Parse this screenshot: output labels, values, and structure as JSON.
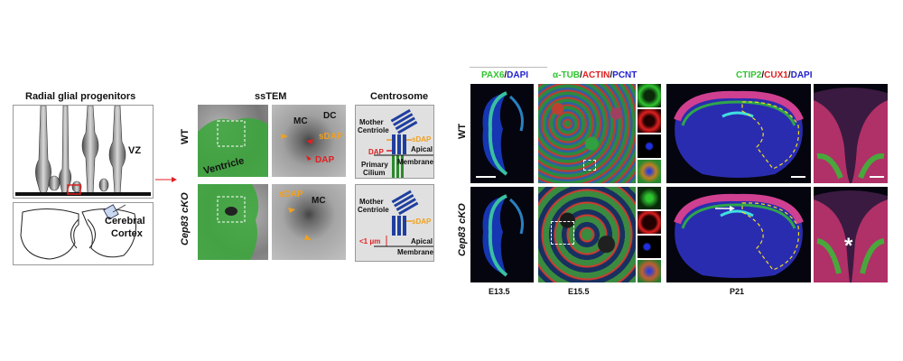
{
  "colors": {
    "green": "#2fc52f",
    "red": "#e02020",
    "blue": "#2020d0",
    "orange": "#f0a020",
    "gray": "#888888"
  },
  "schematic": {
    "title": "Radial glial progenitors",
    "vz": "VZ",
    "cortex_label_1": "Cerebral",
    "cortex_label_2": "Cortex"
  },
  "sstem": {
    "title": "ssTEM",
    "wt": "WT",
    "cko": "Cep83 cKO",
    "ventricle": "Ventricle",
    "mc": "MC",
    "dc": "DC",
    "sdap": "sDAP",
    "dap": "DAP",
    "mc_cko": "MC",
    "sdap_cko": "sDAP"
  },
  "centrosome": {
    "title": "Centrosome",
    "mother_1": "Mother",
    "mother_2": "Centriole",
    "sdap": "sDAP",
    "dap": "DAP",
    "apical_1": "Apical",
    "apical_2": "Membrane",
    "primary_1": "Primary",
    "primary_2": "Cilium",
    "cko_mother_1": "Mother",
    "cko_mother_2": "Centriole",
    "cko_sdap": "sDAP",
    "distance": "<1 μm",
    "cko_apical_1": "Apical",
    "cko_apical_2": "Membrane"
  },
  "fluor": {
    "row_wt": "WT",
    "row_cko": "Cep83 cKO",
    "h1": {
      "a": "PAX6",
      "s": "/",
      "b": "DAPI"
    },
    "h2": {
      "a": "α-TUB",
      "s1": "/",
      "b": "ACTIN",
      "s2": "/",
      "c": "PCNT"
    },
    "h3": {
      "a": "CTIP2",
      "s1": "/",
      "b": "CUX1",
      "s2": "/",
      "c": "DAPI"
    },
    "stage1": "E13.5",
    "stage2": "E15.5",
    "stage3": "P21",
    "asterisk": "*"
  }
}
